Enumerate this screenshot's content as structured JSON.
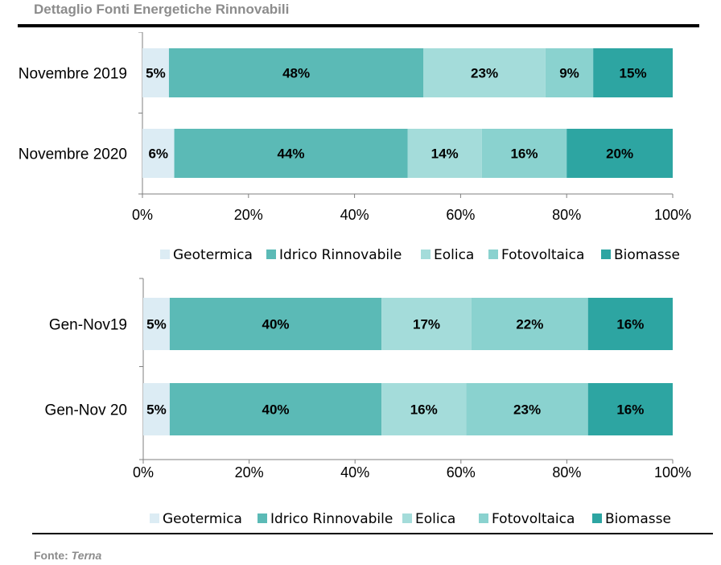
{
  "title": "Dettaglio Fonti Energetiche Rinnovabili",
  "source_label": "Fonte:",
  "source_name": "Terna",
  "colors": {
    "Geotermica": "#dcecf4",
    "Idrico Rinnovabile": "#5bbab6",
    "Eolica": "#a4dcda",
    "Fotovoltaica": "#8ad2cf",
    "Biomasse": "#2da5a2"
  },
  "chart_data": [
    {
      "type": "bar",
      "orientation": "horizontal",
      "stacked": true,
      "categories": [
        "Novembre 2019",
        "Novembre 2020"
      ],
      "series": [
        {
          "name": "Geotermica",
          "values": [
            5,
            6
          ],
          "labels": [
            "5%",
            "6%"
          ]
        },
        {
          "name": "Idrico Rinnovabile",
          "values": [
            48,
            44
          ],
          "labels": [
            "48%",
            "44%"
          ]
        },
        {
          "name": "Eolica",
          "values": [
            23,
            14
          ],
          "labels": [
            "23%",
            "14%"
          ]
        },
        {
          "name": "Fotovoltaica",
          "values": [
            9,
            16
          ],
          "labels": [
            "9%",
            "16%"
          ]
        },
        {
          "name": "Biomasse",
          "values": [
            15,
            20
          ],
          "labels": [
            "15%",
            "20%"
          ]
        }
      ],
      "xlim": [
        0,
        100
      ],
      "xticks": [
        "0%",
        "20%",
        "40%",
        "60%",
        "80%",
        "100%"
      ],
      "grid": false,
      "legend": "bottom"
    },
    {
      "type": "bar",
      "orientation": "horizontal",
      "stacked": true,
      "categories": [
        "Gen-Nov19",
        "Gen-Nov 20"
      ],
      "series": [
        {
          "name": "Geotermica",
          "values": [
            5,
            5
          ],
          "labels": [
            "5%",
            "5%"
          ]
        },
        {
          "name": "Idrico Rinnovabile",
          "values": [
            40,
            40
          ],
          "labels": [
            "40%",
            "40%"
          ]
        },
        {
          "name": "Eolica",
          "values": [
            17,
            16
          ],
          "labels": [
            "17%",
            "16%"
          ]
        },
        {
          "name": "Fotovoltaica",
          "values": [
            22,
            23
          ],
          "labels": [
            "22%",
            "23%"
          ]
        },
        {
          "name": "Biomasse",
          "values": [
            16,
            16
          ],
          "labels": [
            "16%",
            "16%"
          ]
        }
      ],
      "xlim": [
        0,
        100
      ],
      "xticks": [
        "0%",
        "20%",
        "40%",
        "60%",
        "80%",
        "100%"
      ],
      "grid": false,
      "legend": "bottom"
    }
  ]
}
